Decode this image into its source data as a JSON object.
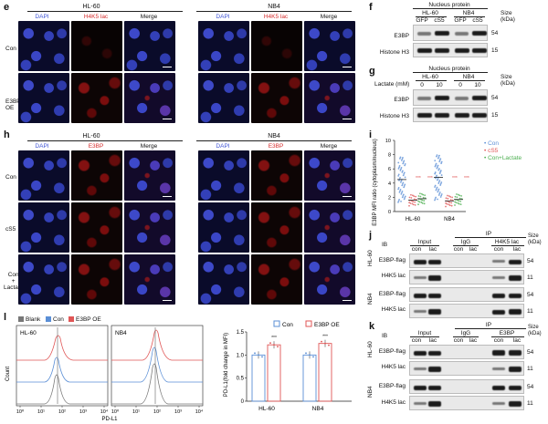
{
  "panels": {
    "e": {
      "letter": "e",
      "cell_lines": [
        "HL-60",
        "NB4"
      ],
      "stains": [
        "DAPI",
        "H4K5 lac",
        "Merge"
      ],
      "rows": [
        "Con",
        "E3BP\nOE"
      ]
    },
    "f": {
      "letter": "f",
      "header": "Nucleus protein",
      "groups": [
        "HL-60",
        "NB4"
      ],
      "lanes": [
        "GFP",
        "cS5",
        "GFP",
        "cS5"
      ],
      "proteins": [
        "E3BP",
        "Histone H3"
      ],
      "size_label": "Size\n(kDa)",
      "sizes": [
        "54",
        "15"
      ]
    },
    "g": {
      "letter": "g",
      "header": "Nucleus protein",
      "lactate_label": "Lactate (mM)",
      "groups": [
        "HL-60",
        "NB4"
      ],
      "lanes": [
        "0",
        "10",
        "0",
        "10"
      ],
      "proteins": [
        "E3BP",
        "Histone H3"
      ],
      "size_label": "Size\n(kDa)",
      "sizes": [
        "54",
        "15"
      ]
    },
    "h": {
      "letter": "h",
      "cell_lines": [
        "HL-60",
        "NB4"
      ],
      "stains": [
        "DAPI",
        "E3BP",
        "Merge"
      ],
      "rows": [
        "Con",
        "cS5",
        "Con\n+\nLactate"
      ]
    },
    "i": {
      "letter": "i",
      "ylabel": "E3BP MFI ratio\n(cytoplasm/nucleus)",
      "yticks": [
        "0",
        "2",
        "4",
        "6",
        "8",
        "10"
      ],
      "xcats": [
        "HL-60",
        "NB4"
      ],
      "legend": [
        "Con",
        "cS5",
        "Con+Lactate"
      ],
      "stars": "***"
    },
    "j": {
      "letter": "j",
      "ib": "IB",
      "ip": "IP",
      "cols": [
        "Input",
        "IgG",
        "H4K5 lac"
      ],
      "lanes": [
        "con",
        "lac",
        "con",
        "lac",
        "con",
        "lac"
      ],
      "groups": [
        "HL-60",
        "NB4"
      ],
      "proteins": [
        "E3BP-flag",
        "H4K5 lac"
      ],
      "size_label": "Size\n(kDa)",
      "sizes": [
        "54",
        "11"
      ]
    },
    "k": {
      "letter": "k",
      "ib": "IB",
      "ip": "IP",
      "cols": [
        "Input",
        "IgG",
        "E3BP"
      ],
      "lanes": [
        "con",
        "lac",
        "con",
        "lac",
        "con",
        "lac"
      ],
      "groups": [
        "HL-60",
        "NB4"
      ],
      "proteins": [
        "E3BP-flag",
        "H4K5 lac"
      ],
      "size_label": "Size\n(kDa)",
      "sizes": [
        "54",
        "11"
      ]
    },
    "l": {
      "letter": "l",
      "legend": [
        "Blank",
        "Con",
        "E3BP OE"
      ],
      "cell_lines": [
        "HL-60",
        "NB4"
      ],
      "xlabel": "PD-L1",
      "ylabel": "Count",
      "xticks": [
        "10⁰",
        "10¹",
        "10²",
        "10³",
        "10⁴"
      ],
      "bar_ylabel": "PD-L1(fold change in MFI)",
      "bar_yticks": [
        "0",
        "0.5",
        "1.0",
        "1.5"
      ],
      "bar_legend": [
        "Con",
        "E3BP OE"
      ],
      "bar_stars": "***"
    }
  },
  "chart_data": [
    {
      "type": "bar",
      "panel": "l",
      "categories": [
        "HL-60",
        "NB4"
      ],
      "series": [
        {
          "name": "Con",
          "values": [
            1.0,
            1.0
          ]
        },
        {
          "name": "E3BP OE",
          "values": [
            1.22,
            1.25
          ]
        }
      ],
      "ylabel": "PD-L1(fold change in MFI)",
      "ylim": [
        0,
        1.5
      ]
    },
    {
      "type": "scatter",
      "panel": "i",
      "categories": [
        "HL-60",
        "NB4"
      ],
      "series": [
        {
          "name": "Con",
          "values": [
            4.5,
            4.8
          ]
        },
        {
          "name": "cS5",
          "values": [
            1.6,
            1.5
          ]
        },
        {
          "name": "Con+Lactate",
          "values": [
            1.8,
            1.7
          ]
        }
      ],
      "ylabel": "E3BP MFI ratio (cytoplasm/nucleus)",
      "ylim": [
        0,
        10
      ]
    }
  ],
  "colors": {
    "con": "#5b8fd6",
    "oe": "#e05656",
    "blank": "#777777",
    "lactate": "#4caf50"
  }
}
